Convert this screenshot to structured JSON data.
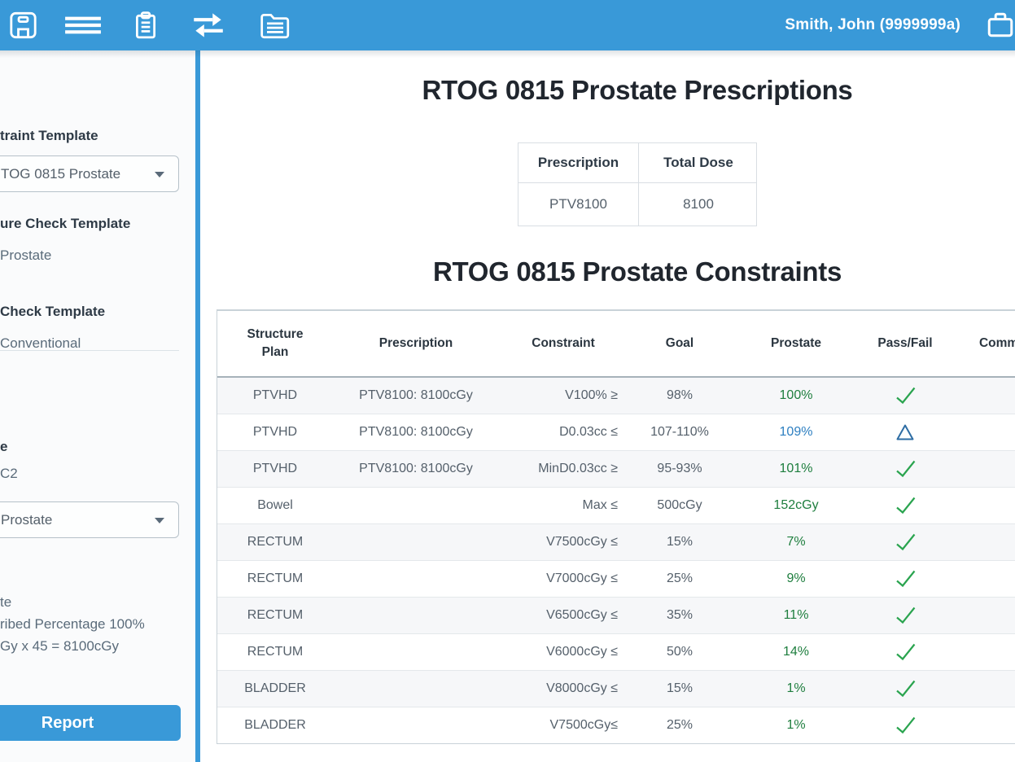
{
  "topbar": {
    "user": "Smith, John (9999999a)",
    "icons": [
      "save-icon",
      "menu-icon",
      "clipboard-icon",
      "transfer-arrows-icon",
      "documents-folder-icon",
      "briefcase-icon"
    ]
  },
  "sidebar": {
    "constraint_template": {
      "label": "traint Template",
      "selected": "TOG 0815 Prostate"
    },
    "structure_check_template": {
      "label": "ure Check Template",
      "value": "Prostate"
    },
    "plan_check_template": {
      "label": "Check Template",
      "value": "Conventional"
    },
    "course": {
      "label": "e",
      "value": "C2"
    },
    "plan_select": {
      "selected": "Prostate"
    },
    "details": [
      "te",
      "ribed Percentage 100%",
      "Gy x 45 = 8100cGy"
    ],
    "report_button": "Report"
  },
  "main": {
    "prescriptions": {
      "title": "RTOG 0815 Prostate Prescriptions",
      "columns": [
        "Prescription",
        "Total Dose"
      ],
      "rows": [
        {
          "prescription": "PTV8100",
          "total_dose": "8100"
        }
      ]
    },
    "constraints": {
      "title": "RTOG 0815 Prostate Constraints",
      "columns": [
        "Structure Plan",
        "Prescription",
        "Constraint",
        "Goal",
        "Prostate",
        "Pass/Fail",
        "Comments"
      ],
      "rows": [
        {
          "structure": "PTVHD",
          "prescription": "PTV8100: 8100cGy",
          "constraint": "V100% ≥",
          "goal": "98%",
          "result": "100%",
          "status": "pass",
          "comment": ""
        },
        {
          "structure": "PTVHD",
          "prescription": "PTV8100: 8100cGy",
          "constraint": "D0.03cc ≤",
          "goal": "107-110%",
          "result": "109%",
          "status": "warn",
          "comment": ""
        },
        {
          "structure": "PTVHD",
          "prescription": "PTV8100: 8100cGy",
          "constraint": "MinD0.03cc ≥",
          "goal": "95-93%",
          "result": "101%",
          "status": "pass",
          "comment": ""
        },
        {
          "structure": "Bowel",
          "prescription": "",
          "constraint": "Max ≤",
          "goal": "500cGy",
          "result": "152cGy",
          "status": "pass",
          "comment": ""
        },
        {
          "structure": "RECTUM",
          "prescription": "",
          "constraint": "V7500cGy ≤",
          "goal": "15%",
          "result": "7%",
          "status": "pass",
          "comment": ""
        },
        {
          "structure": "RECTUM",
          "prescription": "",
          "constraint": "V7000cGy ≤",
          "goal": "25%",
          "result": "9%",
          "status": "pass",
          "comment": ""
        },
        {
          "structure": "RECTUM",
          "prescription": "",
          "constraint": "V6500cGy ≤",
          "goal": "35%",
          "result": "11%",
          "status": "pass",
          "comment": ""
        },
        {
          "structure": "RECTUM",
          "prescription": "",
          "constraint": "V6000cGy ≤",
          "goal": "50%",
          "result": "14%",
          "status": "pass",
          "comment": ""
        },
        {
          "structure": "BLADDER",
          "prescription": "",
          "constraint": "V8000cGy ≤",
          "goal": "15%",
          "result": "1%",
          "status": "pass",
          "comment": ""
        },
        {
          "structure": "BLADDER",
          "prescription": "",
          "constraint": "V7500cGy≤",
          "goal": "25%",
          "result": "1%",
          "status": "pass",
          "comment": ""
        }
      ]
    }
  },
  "colors": {
    "accent_blue": "#3999d8",
    "pass_green": "#2aa44f",
    "pass_text_green": "#1e7e3e",
    "warn_blue": "#2e6da4",
    "warn_text_blue": "#2d7fc1"
  }
}
